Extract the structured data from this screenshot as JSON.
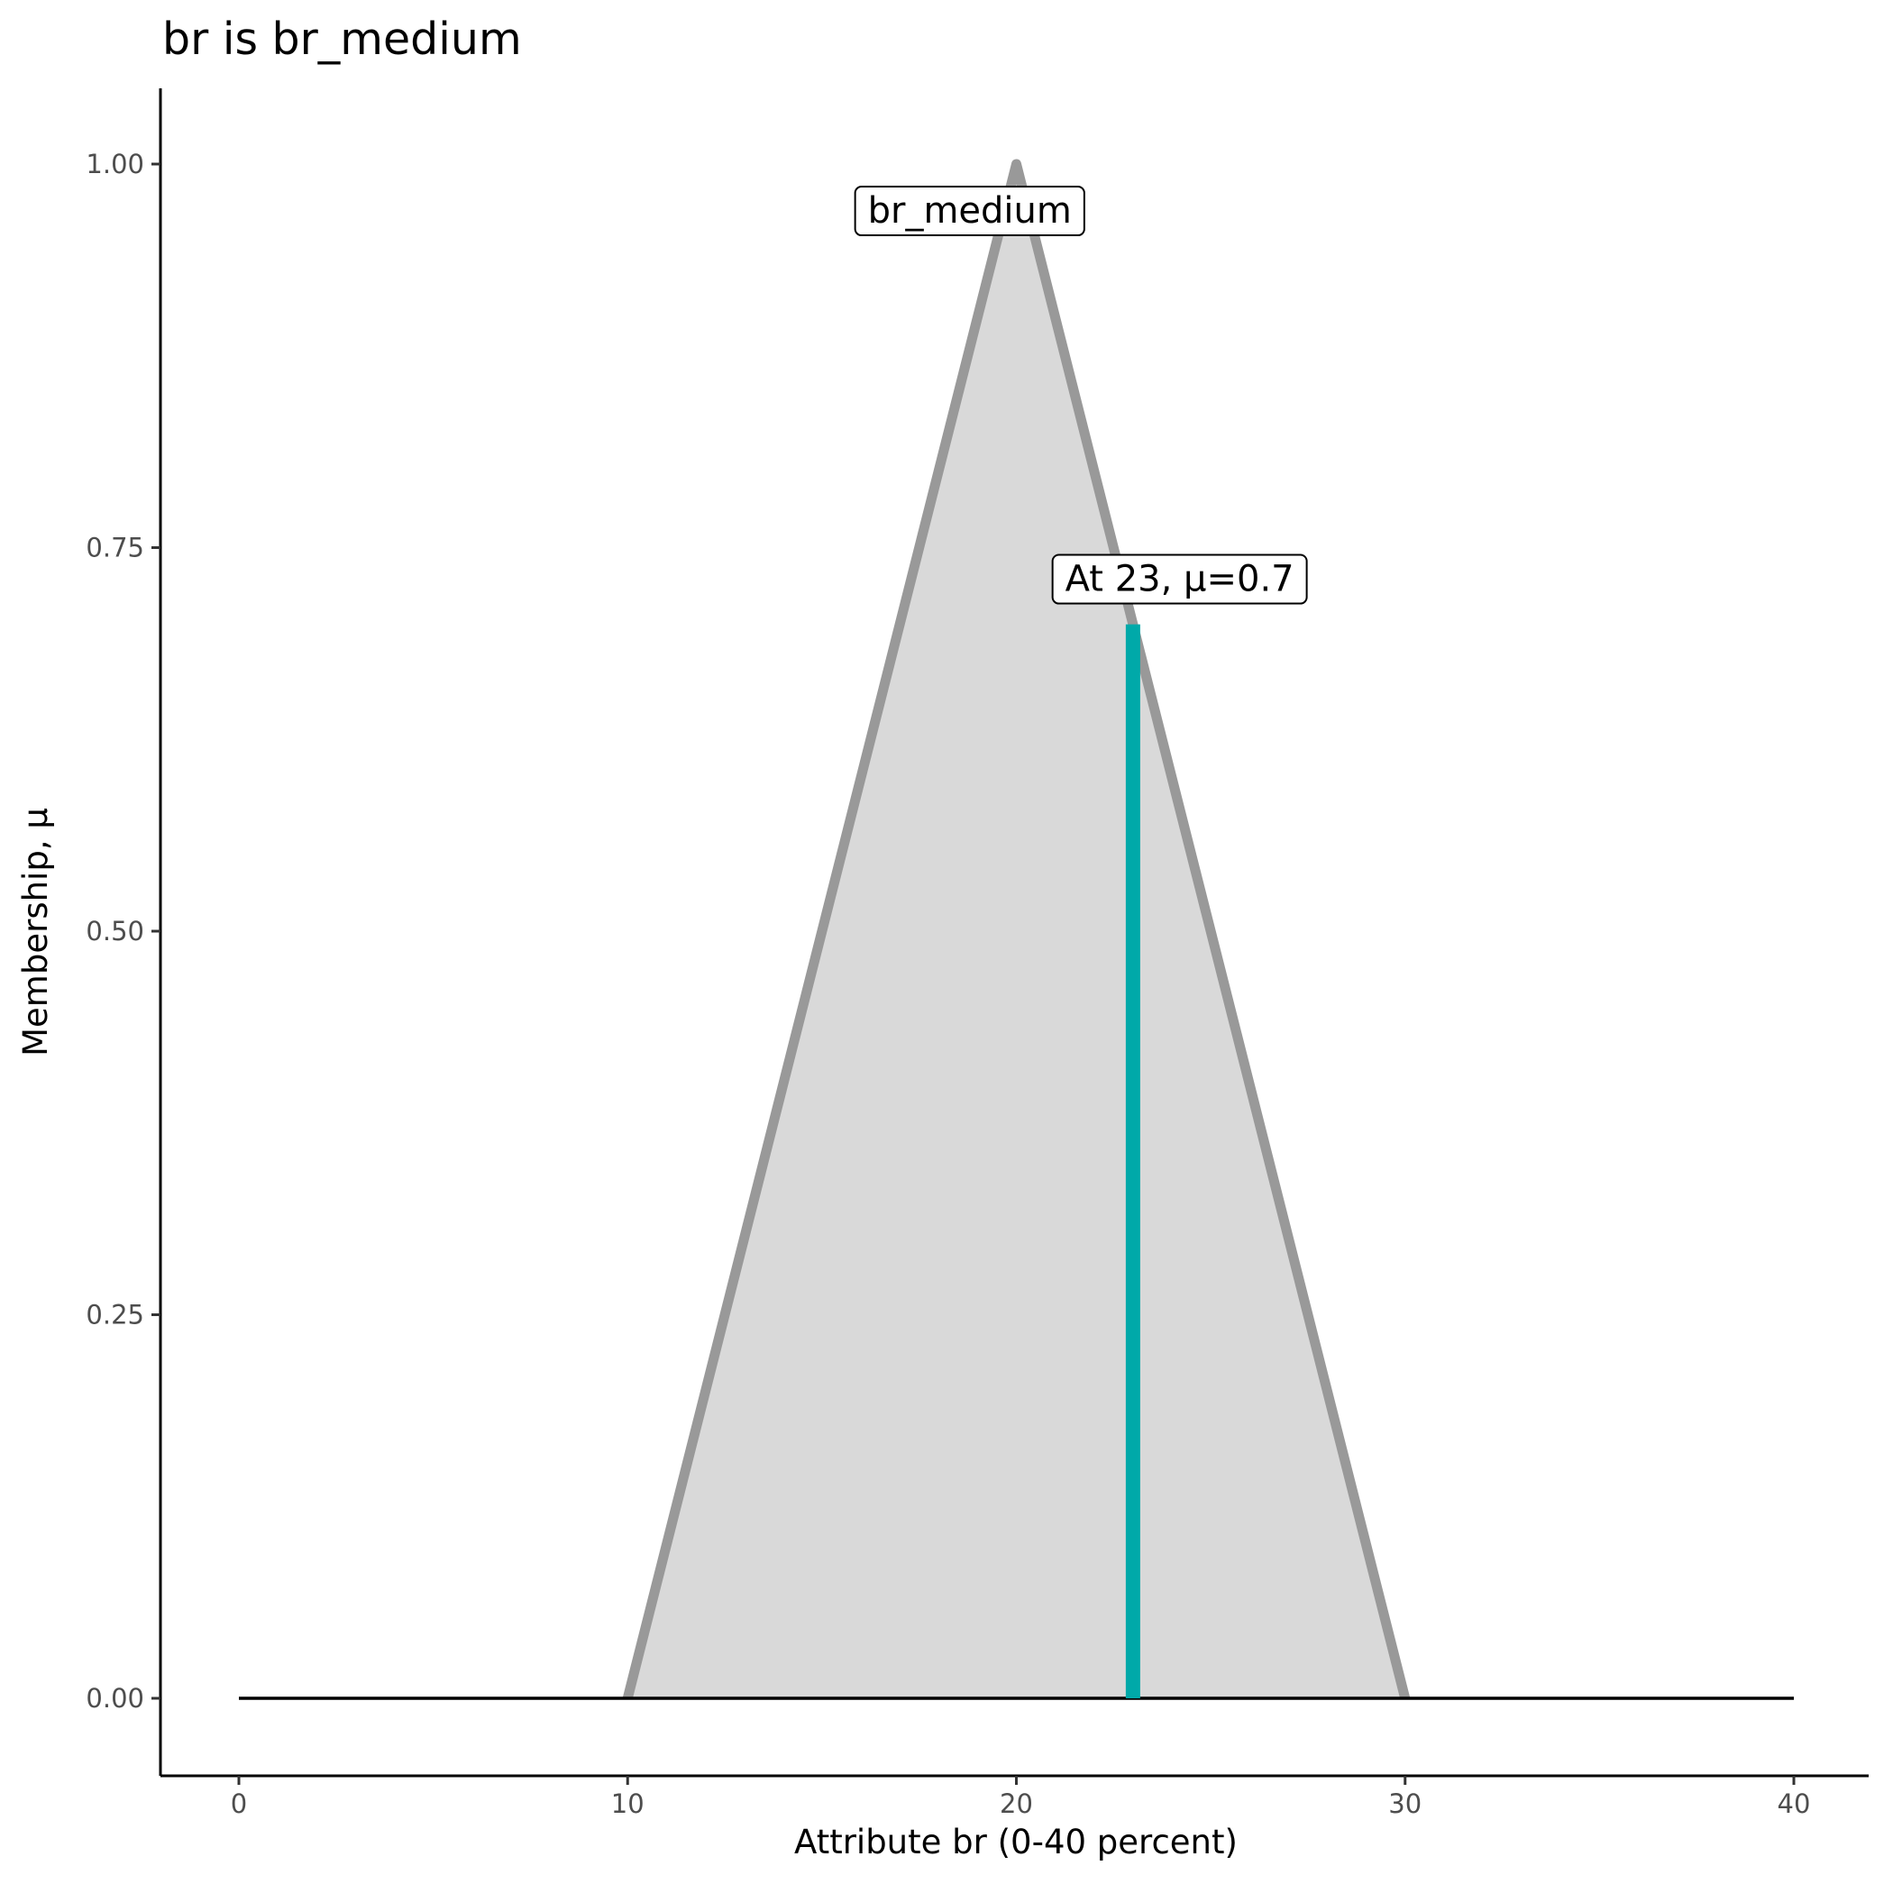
{
  "chart_data": {
    "type": "area",
    "title": "br is br_medium",
    "xlabel": "Attribute br (0-40 percent)",
    "ylabel": "Membership, μ",
    "xlim": [
      0,
      40
    ],
    "ylim": [
      0,
      1
    ],
    "x_ticks": [
      "0",
      "10",
      "20",
      "30",
      "40"
    ],
    "y_ticks": [
      "0.00",
      "0.25",
      "0.50",
      "0.75",
      "1.00"
    ],
    "grid": false,
    "membership_function": {
      "name": "br_medium",
      "x": [
        10,
        20,
        30
      ],
      "y": [
        0,
        1,
        0
      ],
      "fill": "#D9D9D9",
      "stroke": "#999999"
    },
    "baseline": {
      "x": [
        0,
        40
      ],
      "y": 0
    },
    "marker": {
      "x": 23,
      "y": 0.7,
      "color": "#00A9A9"
    },
    "annotations": [
      {
        "text": "br_medium",
        "x": 18.8,
        "y": 0.97
      },
      {
        "text": "At 23, μ=0.7",
        "x": 24.2,
        "y": 0.73
      }
    ]
  }
}
